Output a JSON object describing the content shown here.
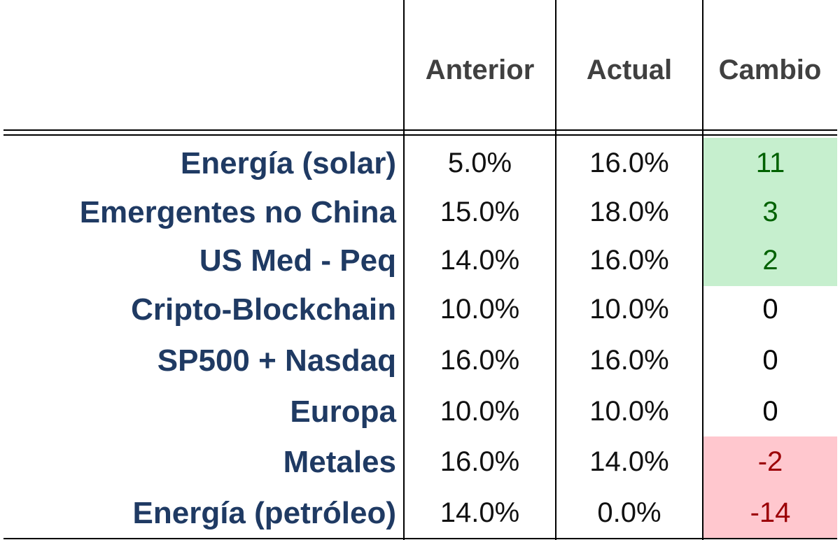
{
  "headers": {
    "anterior": "Anterior",
    "actual": "Actual",
    "cambio": "Cambio"
  },
  "rows": [
    {
      "label": "Energía (solar)",
      "anterior": "5.0%",
      "actual": "16.0%",
      "cambio": "11"
    },
    {
      "label": "Emergentes no China",
      "anterior": "15.0%",
      "actual": "18.0%",
      "cambio": "3"
    },
    {
      "label": "US Med - Peq",
      "anterior": "14.0%",
      "actual": "16.0%",
      "cambio": "2"
    },
    {
      "label": "Cripto-Blockchain",
      "anterior": "10.0%",
      "actual": "10.0%",
      "cambio": "0"
    },
    {
      "label": "SP500 + Nasdaq",
      "anterior": "16.0%",
      "actual": "16.0%",
      "cambio": "0"
    },
    {
      "label": "Europa",
      "anterior": "10.0%",
      "actual": "10.0%",
      "cambio": "0"
    },
    {
      "label": "Metales",
      "anterior": "16.0%",
      "actual": "14.0%",
      "cambio": "-2"
    },
    {
      "label": "Energía (petróleo)",
      "anterior": "14.0%",
      "actual": "0.0%",
      "cambio": "-14"
    }
  ],
  "colors": {
    "label_text": "#1f3a63",
    "positive_fill": "#c6efce",
    "positive_text": "#006100",
    "negative_fill": "#ffc7ce",
    "negative_text": "#9c0006"
  }
}
